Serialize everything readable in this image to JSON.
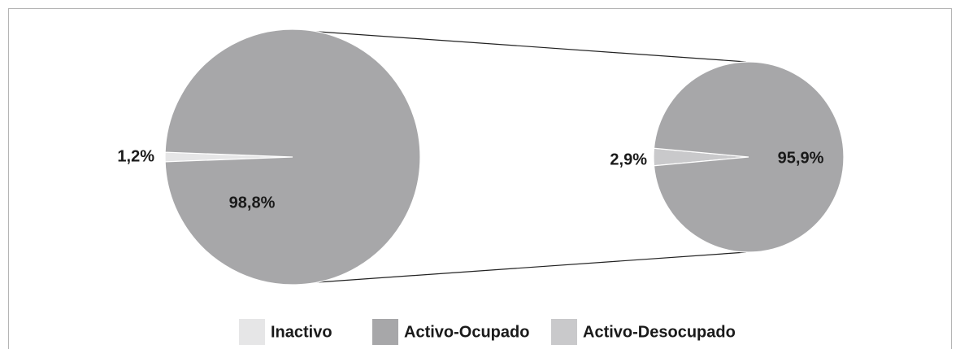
{
  "chart_data": [
    {
      "type": "pie",
      "categories": [
        "Inactivo",
        null
      ],
      "values": [
        1.2,
        98.8
      ],
      "value_labels": [
        "1,2%",
        "98,8%"
      ],
      "colors": [
        "#e6e6e7",
        "#a7a7a9"
      ]
    },
    {
      "type": "pie",
      "categories": [
        "Activo-Ocupado",
        "Activo-Desocupado"
      ],
      "values": [
        95.9,
        2.9
      ],
      "value_labels": [
        "95,9%",
        "2,9%"
      ],
      "colors": [
        "#a7a7a9",
        "#c9c9cb"
      ]
    }
  ]
}
